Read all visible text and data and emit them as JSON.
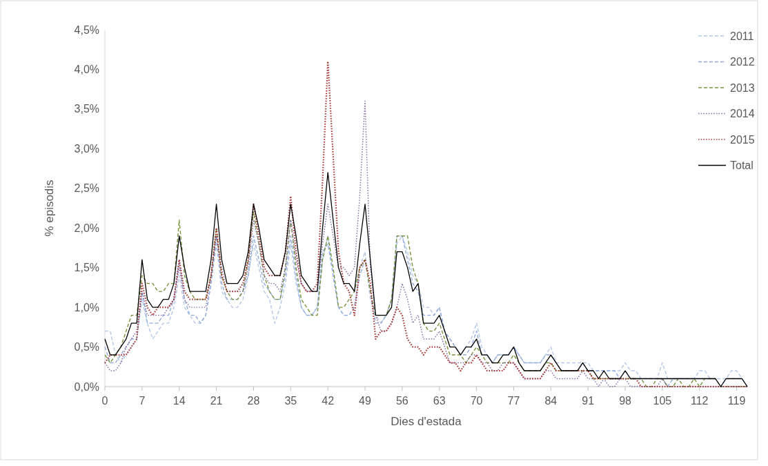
{
  "chart_data": {
    "type": "line",
    "xlabel": "Dies d'estada",
    "ylabel": "% episodis",
    "x": [
      0,
      1,
      2,
      3,
      4,
      5,
      6,
      7,
      8,
      9,
      10,
      11,
      12,
      13,
      14,
      15,
      16,
      17,
      18,
      19,
      20,
      21,
      22,
      23,
      24,
      25,
      26,
      27,
      28,
      29,
      30,
      31,
      32,
      33,
      34,
      35,
      36,
      37,
      38,
      39,
      40,
      41,
      42,
      43,
      44,
      45,
      46,
      47,
      48,
      49,
      50,
      51,
      52,
      53,
      54,
      55,
      56,
      57,
      58,
      59,
      60,
      61,
      62,
      63,
      64,
      65,
      66,
      67,
      68,
      69,
      70,
      71,
      72,
      73,
      74,
      75,
      76,
      77,
      78,
      79,
      80,
      81,
      82,
      83,
      84,
      85,
      86,
      87,
      88,
      89,
      90,
      91,
      92,
      93,
      94,
      95,
      96,
      97,
      98,
      99,
      100,
      101,
      102,
      103,
      104,
      105,
      106,
      107,
      108,
      109,
      110,
      111,
      112,
      113,
      114,
      115,
      116,
      117,
      118,
      119,
      120,
      121
    ],
    "xlim": [
      0,
      121
    ],
    "xticks": [
      0,
      7,
      14,
      21,
      28,
      35,
      42,
      49,
      56,
      63,
      70,
      77,
      84,
      91,
      98,
      105,
      112,
      119
    ],
    "ylim": [
      0,
      4.5
    ],
    "yticks": [
      {
        "value": 0,
        "label": "0,0%"
      },
      {
        "value": 0.5,
        "label": "0,5%"
      },
      {
        "value": 1,
        "label": "1,0%"
      },
      {
        "value": 1.5,
        "label": "1,5%"
      },
      {
        "value": 2,
        "label": "2,0%"
      },
      {
        "value": 2.5,
        "label": "2,5%"
      },
      {
        "value": 3,
        "label": "3,0%"
      },
      {
        "value": 3.5,
        "label": "3,5%"
      },
      {
        "value": 4,
        "label": "4,0%"
      },
      {
        "value": 4.5,
        "label": "4,5%"
      }
    ],
    "grid": false,
    "legend": "top right",
    "marker": "none",
    "series": [
      {
        "name": "2011",
        "color": "#b4c7e7",
        "line_style": "dashed",
        "values": [
          0.7,
          0.7,
          0.4,
          0.3,
          0.4,
          0.5,
          0.6,
          1.1,
          0.8,
          0.6,
          0.7,
          0.8,
          0.8,
          1.0,
          1.4,
          1.0,
          0.9,
          0.8,
          0.8,
          0.9,
          1.3,
          1.8,
          1.2,
          1.1,
          1.0,
          1.0,
          1.1,
          1.4,
          1.8,
          1.5,
          1.2,
          1.1,
          0.8,
          1.0,
          1.3,
          1.8,
          1.3,
          1.0,
          0.9,
          0.9,
          1.0,
          1.6,
          1.9,
          1.4,
          1.0,
          0.9,
          0.9,
          1.0,
          1.5,
          1.7,
          1.1,
          0.9,
          0.8,
          0.9,
          1.1,
          1.8,
          1.9,
          1.7,
          1.4,
          1.3,
          1.0,
          1.0,
          0.9,
          1.0,
          0.7,
          0.6,
          0.5,
          0.4,
          0.5,
          0.6,
          0.8,
          0.5,
          0.4,
          0.3,
          0.4,
          0.4,
          0.4,
          0.5,
          0.4,
          0.3,
          0.3,
          0.3,
          0.3,
          0.4,
          0.5,
          0.3,
          0.3,
          0.3,
          0.3,
          0.3,
          0.3,
          0.3,
          0.2,
          0.2,
          0.2,
          0.2,
          0.2,
          0.2,
          0.3,
          0.2,
          0.2,
          0.1,
          0.1,
          0.1,
          0.1,
          0.3,
          0.1,
          0.1,
          0.1,
          0.1,
          0.1,
          0.1,
          0.2,
          0.2,
          0.1,
          0.1,
          0.1,
          0.1,
          0.2,
          0.2,
          0.1,
          0.0
        ]
      },
      {
        "name": "2012",
        "color": "#8faadc",
        "line_style": "dashed",
        "values": [
          0.5,
          0.3,
          0.3,
          0.4,
          0.5,
          0.6,
          0.6,
          1.2,
          0.8,
          0.8,
          0.8,
          0.9,
          0.9,
          1.1,
          1.6,
          1.1,
          0.9,
          0.9,
          0.8,
          0.9,
          1.3,
          1.9,
          1.3,
          1.1,
          1.1,
          1.1,
          1.2,
          1.4,
          1.9,
          1.6,
          1.3,
          1.2,
          1.1,
          1.1,
          1.4,
          1.9,
          1.4,
          1.0,
          0.9,
          0.9,
          1.0,
          1.7,
          1.8,
          1.4,
          1.0,
          0.9,
          0.9,
          1.0,
          1.4,
          1.6,
          1.2,
          0.8,
          0.8,
          0.9,
          1.1,
          1.9,
          1.9,
          1.6,
          1.3,
          1.2,
          0.9,
          0.9,
          0.9,
          1.0,
          0.7,
          0.6,
          0.5,
          0.4,
          0.4,
          0.5,
          0.7,
          0.4,
          0.4,
          0.3,
          0.4,
          0.4,
          0.4,
          0.5,
          0.4,
          0.3,
          0.3,
          0.3,
          0.3,
          0.4,
          0.4,
          0.3,
          0.2,
          0.2,
          0.2,
          0.2,
          0.3,
          0.2,
          0.2,
          0.2,
          0.2,
          0.2,
          0.2,
          0.1,
          0.2,
          0.1,
          0.1,
          0.1,
          0.1,
          0.1,
          0.1,
          0.1,
          0.0,
          0.1,
          0.1,
          0.1,
          0.1,
          0.1,
          0.1,
          0.1,
          0.1,
          0.1,
          0.0,
          0.1,
          0.1,
          0.1,
          0.1,
          0.0
        ]
      },
      {
        "name": "2013",
        "color": "#77933c",
        "line_style": "dashed",
        "values": [
          0.4,
          0.3,
          0.4,
          0.5,
          0.7,
          0.9,
          0.9,
          1.4,
          1.3,
          1.3,
          1.2,
          1.2,
          1.3,
          1.3,
          2.1,
          1.4,
          1.2,
          1.1,
          1.1,
          1.1,
          1.4,
          2.0,
          1.4,
          1.2,
          1.1,
          1.1,
          1.2,
          1.6,
          2.2,
          1.8,
          1.4,
          1.2,
          1.1,
          1.1,
          1.5,
          2.1,
          1.5,
          1.1,
          1.0,
          0.9,
          0.9,
          1.6,
          1.9,
          1.5,
          1.0,
          1.0,
          1.1,
          1.2,
          1.5,
          1.6,
          1.2,
          0.9,
          0.9,
          0.9,
          1.1,
          1.9,
          1.9,
          1.9,
          1.5,
          1.3,
          0.8,
          0.7,
          0.7,
          0.8,
          0.6,
          0.4,
          0.4,
          0.4,
          0.3,
          0.4,
          0.5,
          0.4,
          0.3,
          0.3,
          0.3,
          0.3,
          0.3,
          0.4,
          0.3,
          0.2,
          0.2,
          0.2,
          0.2,
          0.3,
          0.3,
          0.2,
          0.2,
          0.2,
          0.2,
          0.2,
          0.2,
          0.2,
          0.1,
          0.1,
          0.1,
          0.1,
          0.1,
          0.1,
          0.1,
          0.1,
          0.1,
          0.1,
          0.0,
          0.0,
          0.1,
          0.1,
          0.0,
          0.0,
          0.1,
          0.0,
          0.0,
          0.1,
          0.0,
          0.1,
          0.1,
          0.1,
          0.0,
          0.0,
          0.0,
          0.0,
          0.0,
          0.0
        ]
      },
      {
        "name": "2014",
        "color": "#8064a2",
        "line_style": "dotted",
        "values": [
          0.3,
          0.2,
          0.2,
          0.3,
          0.5,
          0.6,
          0.7,
          1.2,
          0.9,
          0.9,
          0.9,
          0.9,
          1.0,
          1.1,
          1.5,
          1.1,
          1.0,
          1.0,
          1.0,
          1.0,
          1.4,
          1.9,
          1.5,
          1.2,
          1.2,
          1.2,
          1.2,
          1.5,
          2.1,
          1.8,
          1.4,
          1.3,
          1.3,
          1.2,
          1.5,
          2.1,
          1.6,
          1.3,
          1.2,
          1.2,
          1.2,
          1.8,
          2.3,
          1.9,
          1.5,
          1.5,
          1.4,
          1.5,
          2.4,
          3.6,
          1.5,
          0.9,
          0.7,
          0.7,
          0.8,
          1.0,
          1.3,
          1.1,
          0.8,
          0.9,
          0.6,
          0.6,
          0.6,
          0.7,
          0.5,
          0.3,
          0.3,
          0.3,
          0.3,
          0.4,
          0.4,
          0.3,
          0.3,
          0.2,
          0.2,
          0.3,
          0.3,
          0.3,
          0.2,
          0.1,
          0.1,
          0.1,
          0.1,
          0.2,
          0.2,
          0.1,
          0.1,
          0.1,
          0.1,
          0.1,
          0.2,
          0.1,
          0.1,
          0.0,
          0.1,
          0.0,
          0.0,
          0.1,
          0.1,
          0.0,
          0.0,
          0.0,
          0.0,
          0.0,
          0.0,
          0.1,
          0.0,
          0.0,
          0.0,
          0.0,
          0.0,
          0.0,
          0.0,
          0.0,
          0.0,
          0.0,
          0.0,
          0.0,
          0.0,
          0.0,
          0.0,
          0.0
        ]
      },
      {
        "name": "2015",
        "color": "#a5302c",
        "line_style": "dotted",
        "values": [
          0.3,
          0.4,
          0.4,
          0.4,
          0.4,
          0.5,
          0.6,
          1.3,
          1.0,
          0.9,
          1.0,
          1.0,
          1.0,
          1.1,
          1.6,
          1.2,
          1.1,
          1.1,
          1.1,
          1.1,
          1.4,
          2.0,
          1.4,
          1.2,
          1.2,
          1.2,
          1.3,
          1.6,
          2.3,
          1.9,
          1.5,
          1.4,
          1.4,
          1.4,
          1.7,
          2.4,
          1.7,
          1.3,
          1.2,
          1.2,
          1.3,
          2.6,
          4.1,
          2.9,
          1.7,
          1.3,
          1.2,
          0.9,
          1.5,
          1.6,
          1.3,
          0.6,
          0.7,
          0.7,
          0.8,
          1.0,
          0.9,
          0.6,
          0.5,
          0.5,
          0.4,
          0.5,
          0.5,
          0.5,
          0.4,
          0.3,
          0.3,
          0.2,
          0.3,
          0.3,
          0.4,
          0.3,
          0.2,
          0.2,
          0.2,
          0.2,
          0.3,
          0.3,
          0.2,
          0.1,
          0.1,
          0.1,
          0.1,
          0.2,
          0.3,
          0.2,
          0.2,
          0.2,
          0.2,
          0.2,
          0.2,
          0.2,
          0.1,
          0.1,
          0.1,
          0.1,
          0.1,
          0.1,
          0.1,
          0.1,
          0.1,
          0.0,
          0.0,
          0.0,
          0.0,
          0.0,
          0.0,
          0.0,
          0.0,
          0.0,
          0.0,
          0.0,
          0.0,
          0.0,
          0.0,
          0.0,
          0.0,
          0.0,
          0.0,
          0.0,
          0.0,
          0.0
        ]
      },
      {
        "name": "Total",
        "color": "#000000",
        "line_style": "solid",
        "values": [
          0.6,
          0.4,
          0.4,
          0.5,
          0.6,
          0.8,
          0.8,
          1.6,
          1.1,
          1.0,
          1.0,
          1.1,
          1.1,
          1.3,
          1.9,
          1.5,
          1.2,
          1.2,
          1.2,
          1.2,
          1.6,
          2.3,
          1.6,
          1.3,
          1.3,
          1.3,
          1.4,
          1.7,
          2.3,
          2.0,
          1.6,
          1.5,
          1.4,
          1.4,
          1.7,
          2.3,
          1.9,
          1.4,
          1.3,
          1.2,
          1.2,
          2.0,
          2.7,
          2.1,
          1.5,
          1.3,
          1.3,
          1.2,
          1.8,
          2.3,
          1.6,
          0.9,
          0.9,
          0.9,
          1.0,
          1.7,
          1.7,
          1.5,
          1.2,
          1.3,
          0.8,
          0.8,
          0.8,
          0.9,
          0.7,
          0.5,
          0.5,
          0.4,
          0.5,
          0.5,
          0.6,
          0.4,
          0.4,
          0.3,
          0.3,
          0.4,
          0.4,
          0.5,
          0.3,
          0.2,
          0.2,
          0.2,
          0.2,
          0.3,
          0.4,
          0.3,
          0.2,
          0.2,
          0.2,
          0.2,
          0.3,
          0.2,
          0.2,
          0.1,
          0.2,
          0.1,
          0.1,
          0.1,
          0.2,
          0.1,
          0.1,
          0.1,
          0.1,
          0.1,
          0.1,
          0.1,
          0.1,
          0.1,
          0.1,
          0.1,
          0.1,
          0.1,
          0.1,
          0.1,
          0.1,
          0.1,
          0.0,
          0.1,
          0.1,
          0.1,
          0.1,
          0.0
        ]
      }
    ]
  }
}
